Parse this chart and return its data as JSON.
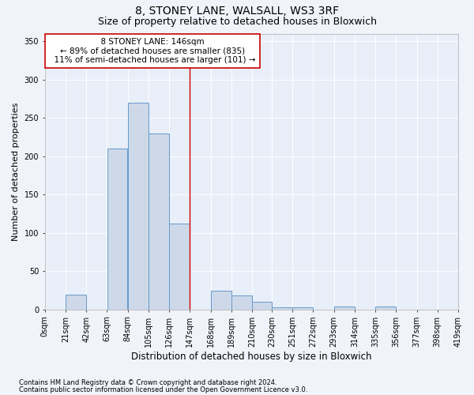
{
  "title": "8, STONEY LANE, WALSALL, WS3 3RF",
  "subtitle": "Size of property relative to detached houses in Bloxwich",
  "xlabel": "Distribution of detached houses by size in Bloxwich",
  "ylabel": "Number of detached properties",
  "footer_line1": "Contains HM Land Registry data © Crown copyright and database right 2024.",
  "footer_line2": "Contains public sector information licensed under the Open Government Licence v3.0.",
  "bin_edges": [
    0,
    21,
    42,
    63,
    84,
    105,
    126,
    147,
    168,
    189,
    210,
    230,
    251,
    272,
    293,
    314,
    335,
    356,
    377,
    398,
    419
  ],
  "bar_heights": [
    0,
    19,
    0,
    210,
    270,
    230,
    112,
    0,
    25,
    18,
    10,
    3,
    3,
    0,
    4,
    0,
    4,
    0,
    0,
    0
  ],
  "bar_color": "#cdd9e8",
  "bar_edge_color": "#6699cc",
  "vline_x": 147,
  "vline_color": "#cc0000",
  "annotation_text": "  8 STONEY LANE: 146sqm  \n← 89% of detached houses are smaller (835)\n  11% of semi-detached houses are larger (101) →",
  "annotation_box_color": "#cc0000",
  "ylim": [
    0,
    360
  ],
  "yticks": [
    0,
    50,
    100,
    150,
    200,
    250,
    300,
    350
  ],
  "background_color": "#f0f4fa",
  "plot_bg_color": "#e8eff8",
  "title_fontsize": 10,
  "subtitle_fontsize": 9,
  "tick_label_fontsize": 7,
  "ylabel_fontsize": 8,
  "xlabel_fontsize": 8.5,
  "footer_fontsize": 6,
  "annotation_fontsize": 7.5
}
